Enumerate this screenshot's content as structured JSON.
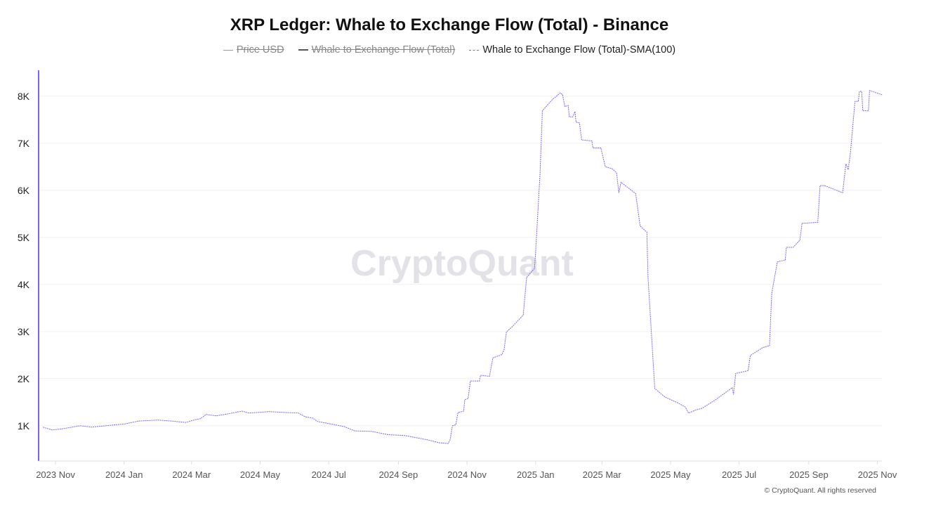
{
  "chart_data": {
    "type": "line",
    "title": "XRP Ledger: Whale to Exchange Flow (Total) - Binance",
    "legend": [
      {
        "label": "Price USD",
        "hidden": true,
        "color": "#999999"
      },
      {
        "label": "Whale to Exchange Flow (Total)",
        "hidden": true,
        "color": "#555555"
      },
      {
        "label": "Whale to Exchange Flow (Total)-SMA(100)",
        "hidden": false,
        "color": "#7b68ee"
      }
    ],
    "legend_placement": "top-center",
    "xlabel": "",
    "ylabel": "",
    "xlim": [
      "2023-10-17",
      "2025-11-05"
    ],
    "ylim": [
      250,
      8550
    ],
    "grid": true,
    "y_ticks": [
      {
        "value": 1000,
        "label": "1K"
      },
      {
        "value": 2000,
        "label": "2K"
      },
      {
        "value": 3000,
        "label": "3K"
      },
      {
        "value": 4000,
        "label": "4K"
      },
      {
        "value": 5000,
        "label": "5K"
      },
      {
        "value": 6000,
        "label": "6K"
      },
      {
        "value": 7000,
        "label": "7K"
      },
      {
        "value": 8000,
        "label": "8K"
      }
    ],
    "x_ticks": [
      {
        "date": "2023-11-01",
        "label": "2023 Nov"
      },
      {
        "date": "2024-01-01",
        "label": "2024 Jan"
      },
      {
        "date": "2024-03-01",
        "label": "2024 Mar"
      },
      {
        "date": "2024-05-01",
        "label": "2024 May"
      },
      {
        "date": "2024-07-01",
        "label": "2024 Jul"
      },
      {
        "date": "2024-09-01",
        "label": "2024 Sep"
      },
      {
        "date": "2024-11-01",
        "label": "2024 Nov"
      },
      {
        "date": "2025-01-01",
        "label": "2025 Jan"
      },
      {
        "date": "2025-03-01",
        "label": "2025 Mar"
      },
      {
        "date": "2025-05-01",
        "label": "2025 May"
      },
      {
        "date": "2025-07-01",
        "label": "2025 Jul"
      },
      {
        "date": "2025-09-01",
        "label": "2025 Sep"
      },
      {
        "date": "2025-11-01",
        "label": "2025 Nov"
      }
    ],
    "series": [
      {
        "name": "Whale to Exchange Flow (Total)-SMA(100)",
        "color": "#7b68ee",
        "points": [
          [
            "2023-10-21",
            970
          ],
          [
            "2023-10-29",
            910
          ],
          [
            "2023-11-06",
            930
          ],
          [
            "2023-11-23",
            1000
          ],
          [
            "2023-12-03",
            970
          ],
          [
            "2024-01-02",
            1040
          ],
          [
            "2024-01-14",
            1100
          ],
          [
            "2024-01-31",
            1120
          ],
          [
            "2024-02-12",
            1100
          ],
          [
            "2024-02-25",
            1070
          ],
          [
            "2024-03-03",
            1120
          ],
          [
            "2024-03-09",
            1150
          ],
          [
            "2024-03-14",
            1240
          ],
          [
            "2024-03-23",
            1210
          ],
          [
            "2024-04-02",
            1250
          ],
          [
            "2024-04-15",
            1310
          ],
          [
            "2024-04-21",
            1270
          ],
          [
            "2024-05-09",
            1300
          ],
          [
            "2024-05-24",
            1280
          ],
          [
            "2024-06-04",
            1270
          ],
          [
            "2024-06-10",
            1190
          ],
          [
            "2024-06-17",
            1160
          ],
          [
            "2024-06-21",
            1090
          ],
          [
            "2024-06-30",
            1050
          ],
          [
            "2024-07-15",
            980
          ],
          [
            "2024-07-24",
            890
          ],
          [
            "2024-08-08",
            880
          ],
          [
            "2024-08-23",
            810
          ],
          [
            "2024-09-07",
            790
          ],
          [
            "2024-09-27",
            700
          ],
          [
            "2024-10-07",
            640
          ],
          [
            "2024-10-15",
            620
          ],
          [
            "2024-10-17",
            700
          ],
          [
            "2024-10-19",
            1000
          ],
          [
            "2024-10-22",
            1020
          ],
          [
            "2024-10-24",
            1280
          ],
          [
            "2024-10-29",
            1310
          ],
          [
            "2024-10-30",
            1550
          ],
          [
            "2024-11-02",
            1580
          ],
          [
            "2024-11-04",
            1950
          ],
          [
            "2024-11-12",
            1950
          ],
          [
            "2024-11-13",
            2070
          ],
          [
            "2024-11-21",
            2050
          ],
          [
            "2024-11-24",
            2440
          ],
          [
            "2024-12-02",
            2510
          ],
          [
            "2024-12-04",
            2620
          ],
          [
            "2024-12-06",
            2990
          ],
          [
            "2024-12-11",
            3100
          ],
          [
            "2024-12-21",
            3350
          ],
          [
            "2024-12-24",
            4150
          ],
          [
            "2024-12-31",
            4340
          ],
          [
            "2025-01-01",
            4680
          ],
          [
            "2025-01-05",
            6380
          ],
          [
            "2025-01-07",
            7690
          ],
          [
            "2025-01-16",
            7930
          ],
          [
            "2025-01-23",
            8070
          ],
          [
            "2025-01-25",
            8030
          ],
          [
            "2025-01-27",
            7780
          ],
          [
            "2025-01-30",
            7800
          ],
          [
            "2025-01-31",
            7560
          ],
          [
            "2025-02-03",
            7560
          ],
          [
            "2025-02-05",
            7670
          ],
          [
            "2025-02-06",
            7450
          ],
          [
            "2025-02-09",
            7430
          ],
          [
            "2025-02-11",
            7070
          ],
          [
            "2025-02-20",
            7050
          ],
          [
            "2025-02-21",
            6900
          ],
          [
            "2025-02-28",
            6900
          ],
          [
            "2025-03-04",
            6500
          ],
          [
            "2025-03-10",
            6460
          ],
          [
            "2025-03-14",
            6370
          ],
          [
            "2025-03-16",
            5950
          ],
          [
            "2025-03-18",
            6170
          ],
          [
            "2025-03-31",
            5930
          ],
          [
            "2025-04-04",
            5240
          ],
          [
            "2025-04-10",
            5110
          ],
          [
            "2025-04-11",
            4150
          ],
          [
            "2025-04-17",
            1790
          ],
          [
            "2025-04-26",
            1610
          ],
          [
            "2025-05-07",
            1490
          ],
          [
            "2025-05-14",
            1400
          ],
          [
            "2025-05-17",
            1270
          ],
          [
            "2025-05-23",
            1330
          ],
          [
            "2025-05-29",
            1370
          ],
          [
            "2025-06-10",
            1550
          ],
          [
            "2025-06-25",
            1810
          ],
          [
            "2025-06-26",
            1660
          ],
          [
            "2025-06-28",
            2110
          ],
          [
            "2025-07-09",
            2170
          ],
          [
            "2025-07-11",
            2490
          ],
          [
            "2025-07-22",
            2660
          ],
          [
            "2025-07-28",
            2700
          ],
          [
            "2025-07-30",
            3810
          ],
          [
            "2025-08-04",
            4480
          ],
          [
            "2025-08-11",
            4520
          ],
          [
            "2025-08-12",
            4790
          ],
          [
            "2025-08-18",
            4790
          ],
          [
            "2025-08-24",
            4940
          ],
          [
            "2025-08-26",
            5300
          ],
          [
            "2025-09-09",
            5320
          ],
          [
            "2025-09-11",
            6100
          ],
          [
            "2025-09-15",
            6100
          ],
          [
            "2025-10-01",
            5950
          ],
          [
            "2025-10-04",
            6560
          ],
          [
            "2025-10-06",
            6440
          ],
          [
            "2025-10-08",
            6800
          ],
          [
            "2025-10-12",
            7890
          ],
          [
            "2025-10-15",
            7890
          ],
          [
            "2025-10-16",
            8100
          ],
          [
            "2025-10-18",
            8100
          ],
          [
            "2025-10-19",
            7690
          ],
          [
            "2025-10-24",
            7690
          ],
          [
            "2025-10-25",
            8120
          ],
          [
            "2025-11-05",
            8030
          ]
        ]
      }
    ],
    "watermark": "CryptoQuant",
    "copyright": "© CryptoQuant. All rights reserved"
  }
}
